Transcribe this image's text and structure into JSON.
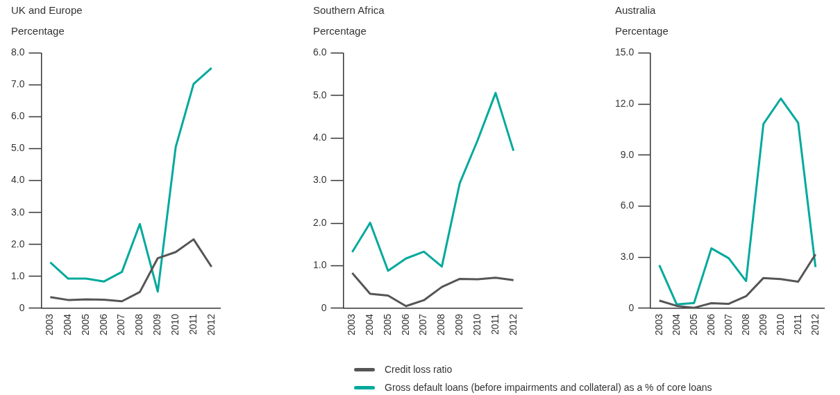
{
  "chart_data": [
    {
      "type": "line",
      "title": "UK and Europe",
      "ylabel": "Percentage",
      "categories": [
        "2003",
        "2004",
        "2005",
        "2006",
        "2007",
        "2008",
        "2009",
        "2010",
        "2011",
        "2012"
      ],
      "series": [
        {
          "name": "Credit loss ratio",
          "color": "#555555",
          "values": [
            0.35,
            0.26,
            0.28,
            0.27,
            0.22,
            0.51,
            1.57,
            1.76,
            2.16,
            1.3
          ]
        },
        {
          "name": "Gross default loans (before impairments and collateral) as a % of core loans",
          "color": "#00a99d",
          "values": [
            1.44,
            0.93,
            0.93,
            0.84,
            1.14,
            2.64,
            0.52,
            5.05,
            7.03,
            7.53
          ]
        }
      ],
      "ylim": [
        0,
        8
      ],
      "yticks": [
        {
          "value": 0,
          "label": "0"
        },
        {
          "value": 1,
          "label": "1.0"
        },
        {
          "value": 2,
          "label": "2.0"
        },
        {
          "value": 3,
          "label": "3.0"
        },
        {
          "value": 4,
          "label": "4.0"
        },
        {
          "value": 5,
          "label": "5.0"
        },
        {
          "value": 6,
          "label": "6.0"
        },
        {
          "value": 7,
          "label": "7.0"
        },
        {
          "value": 8,
          "label": "8.0"
        }
      ],
      "grid": false,
      "legend": "bottom",
      "marker": "none",
      "line_style": "solid"
    },
    {
      "type": "line",
      "title": "Southern Africa",
      "ylabel": "Percentage",
      "categories": [
        "2003",
        "2004",
        "2005",
        "2006",
        "2007",
        "2008",
        "2009",
        "2010",
        "2011",
        "2012"
      ],
      "series": [
        {
          "name": "Credit loss ratio",
          "color": "#555555",
          "values": [
            0.83,
            0.34,
            0.3,
            0.05,
            0.19,
            0.5,
            0.69,
            0.68,
            0.72,
            0.66
          ]
        },
        {
          "name": "Gross default loans (before impairments and collateral) as a % of core loans",
          "color": "#00a99d",
          "values": [
            1.32,
            2.01,
            0.88,
            1.17,
            1.33,
            0.98,
            2.94,
            3.95,
            5.06,
            3.7
          ]
        }
      ],
      "ylim": [
        0,
        6
      ],
      "yticks": [
        {
          "value": 0,
          "label": "0"
        },
        {
          "value": 1,
          "label": "1.0"
        },
        {
          "value": 2,
          "label": "2.0"
        },
        {
          "value": 3,
          "label": "3.0"
        },
        {
          "value": 4,
          "label": "4.0"
        },
        {
          "value": 5,
          "label": "5.0"
        },
        {
          "value": 6,
          "label": "6.0"
        }
      ],
      "grid": false,
      "legend": "bottom",
      "marker": "none",
      "line_style": "solid"
    },
    {
      "type": "line",
      "title": "Australia",
      "ylabel": "Percentage",
      "categories": [
        "2003",
        "2004",
        "2005",
        "2006",
        "2007",
        "2008",
        "2009",
        "2010",
        "2011",
        "2012"
      ],
      "series": [
        {
          "name": "Credit loss ratio",
          "color": "#555555",
          "values": [
            0.45,
            0.14,
            0.03,
            0.3,
            0.26,
            0.71,
            1.78,
            1.71,
            1.56,
            3.17
          ]
        },
        {
          "name": "Gross default loans (before impairments and collateral) as a % of core loans",
          "color": "#00a99d",
          "values": [
            2.53,
            0.23,
            0.31,
            3.52,
            2.94,
            1.6,
            10.83,
            12.32,
            10.9,
            2.42
          ]
        }
      ],
      "ylim": [
        0,
        15
      ],
      "yticks": [
        {
          "value": 0,
          "label": "0"
        },
        {
          "value": 3,
          "label": "3.0"
        },
        {
          "value": 6,
          "label": "6.0"
        },
        {
          "value": 9,
          "label": "9.0"
        },
        {
          "value": 12,
          "label": "12.0"
        },
        {
          "value": 15,
          "label": "15.0"
        }
      ],
      "grid": false,
      "legend": "bottom",
      "marker": "none",
      "line_style": "solid"
    }
  ]
}
